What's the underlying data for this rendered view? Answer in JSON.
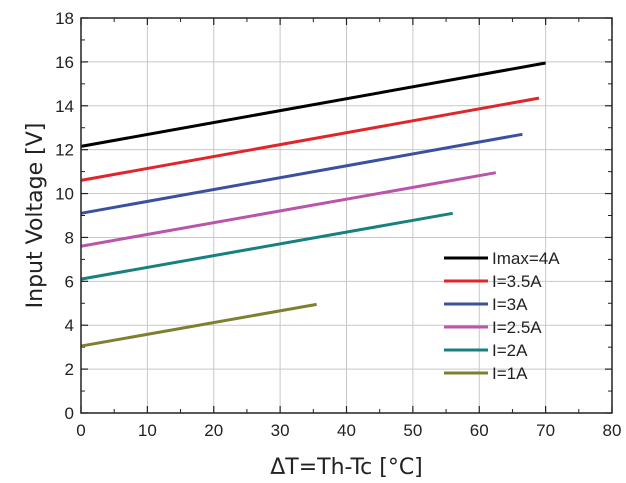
{
  "chart_data": {
    "type": "line",
    "title": "",
    "xlabel": "ΔT=Th-Tc [°C]",
    "ylabel": "Input Voltage [V]",
    "xlim": [
      0,
      80
    ],
    "ylim": [
      0,
      18
    ],
    "xticks": [
      "0",
      "10",
      "20",
      "30",
      "40",
      "50",
      "60",
      "70",
      "80"
    ],
    "yticks": [
      "0",
      "2",
      "4",
      "6",
      "8",
      "10",
      "12",
      "14",
      "16",
      "18"
    ],
    "grid": true,
    "legend_position": "bottom-right",
    "series": [
      {
        "name": "Imax=4A",
        "color": "#000000",
        "x": [
          0,
          70
        ],
        "y": [
          12.15,
          15.95
        ]
      },
      {
        "name": "I=3.5A",
        "color": "#e0262b",
        "x": [
          0,
          69
        ],
        "y": [
          10.6,
          14.35
        ]
      },
      {
        "name": "I=3A",
        "color": "#3c50a0",
        "x": [
          0,
          66.5
        ],
        "y": [
          9.1,
          12.7
        ]
      },
      {
        "name": "I=2.5A",
        "color": "#b955aa",
        "x": [
          0,
          62.5
        ],
        "y": [
          7.6,
          10.95
        ]
      },
      {
        "name": "I=2A",
        "color": "#188080",
        "x": [
          0,
          56
        ],
        "y": [
          6.1,
          9.1
        ]
      },
      {
        "name": "I=1A",
        "color": "#7f7f32",
        "x": [
          0,
          35.5
        ],
        "y": [
          3.05,
          4.95
        ]
      }
    ]
  }
}
